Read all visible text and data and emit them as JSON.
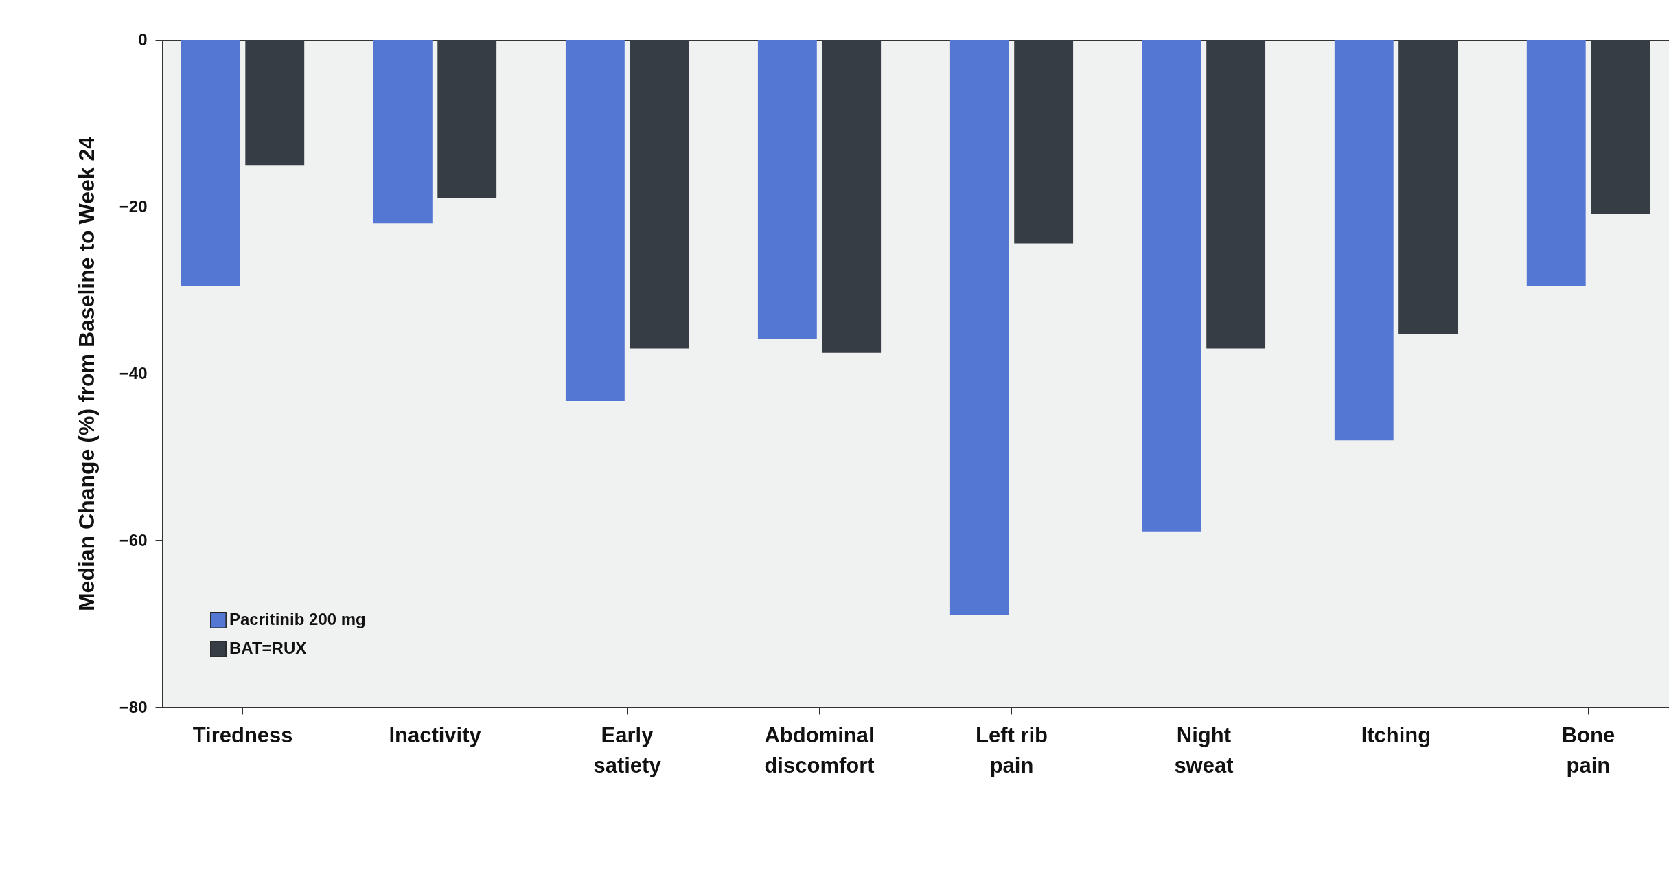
{
  "chart_data": {
    "type": "bar",
    "ylabel": "Median Change (%) from Baseline to Week 24",
    "categories": [
      "Tiredness",
      "Inactivity",
      "Early satiety",
      "Abdominal discomfort",
      "Left rib pain",
      "Night sweat",
      "Itching",
      "Bone pain"
    ],
    "series": [
      {
        "name": "Pacritinib 200 mg",
        "color": "#5577d4",
        "values": [
          -29.5,
          -22,
          -43.3,
          -35.8,
          -68.9,
          -58.9,
          -48,
          -29.5
        ]
      },
      {
        "name": "BAT=RUX",
        "color": "#373d45",
        "values": [
          -15,
          -19,
          -37,
          -37.5,
          -24.4,
          -37,
          -35.3,
          -20.9
        ]
      }
    ],
    "ylim": [
      -80,
      0
    ],
    "yticks": [
      0,
      -20,
      -40,
      -60,
      -80
    ],
    "grid": false,
    "legend": "bottom left"
  }
}
